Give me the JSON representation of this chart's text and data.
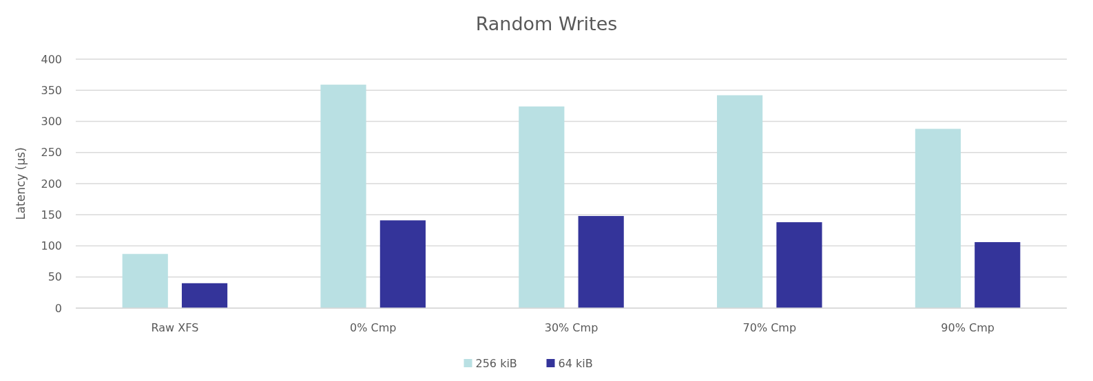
{
  "chart_data": {
    "type": "bar",
    "title": "Random Writes",
    "ylabel": "Latency (µs)",
    "categories": [
      "Raw XFS",
      "0% Cmp",
      "30% Cmp",
      "70% Cmp",
      "90% Cmp"
    ],
    "series": [
      {
        "name": "256 kiB",
        "color": "#b9e0e3",
        "values": [
          87,
          359,
          324,
          342,
          288
        ]
      },
      {
        "name": "64 kiB",
        "color": "#34349a",
        "values": [
          40,
          141,
          148,
          138,
          106
        ]
      }
    ],
    "ylim": [
      0,
      400
    ],
    "yticks": [
      0,
      50,
      100,
      150,
      200,
      250,
      300,
      350,
      400
    ],
    "grid": "y",
    "legend": "bottom"
  }
}
